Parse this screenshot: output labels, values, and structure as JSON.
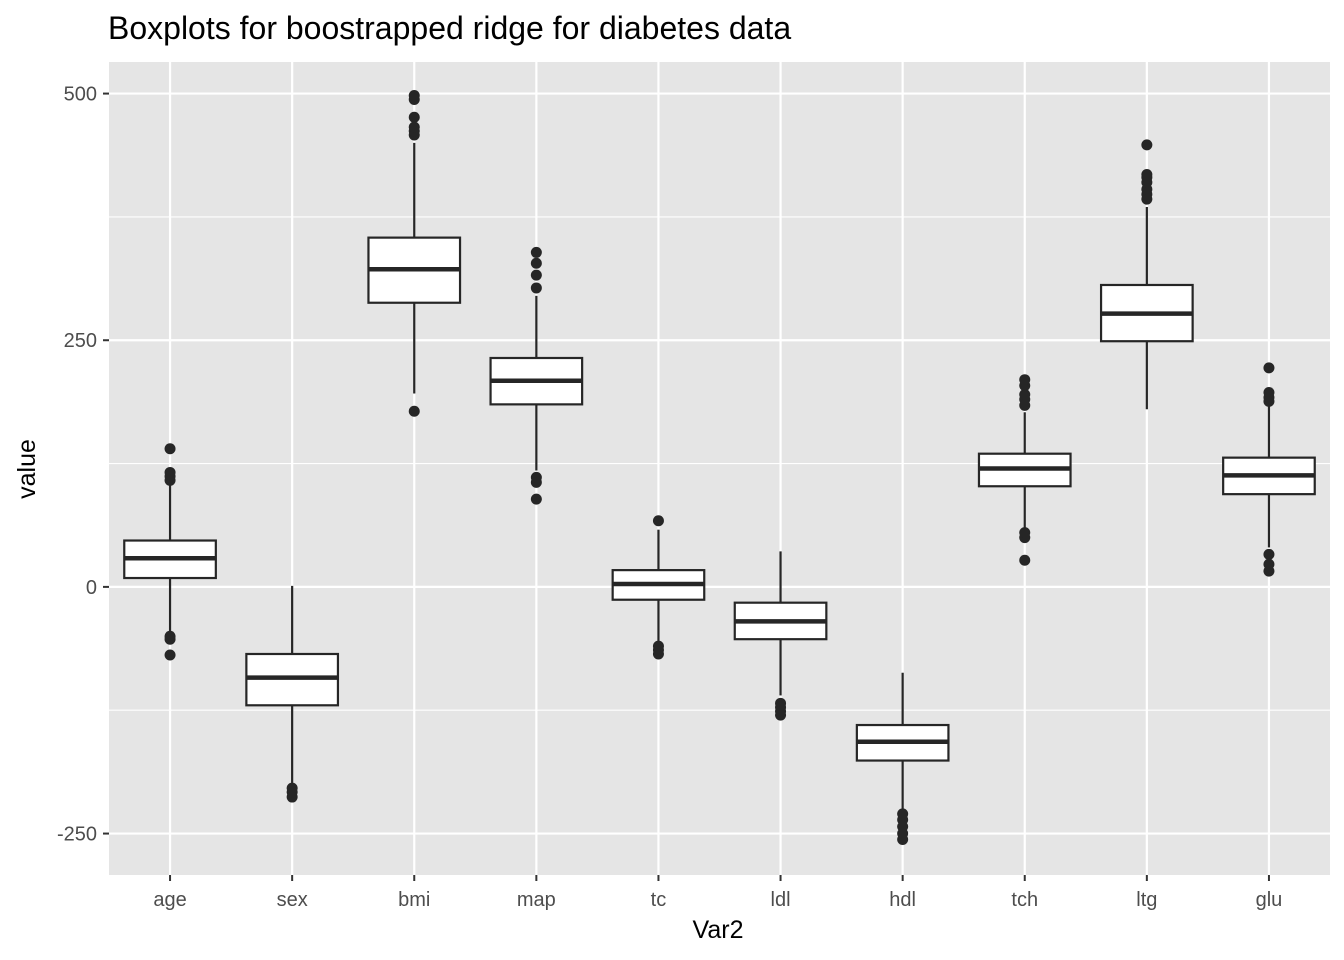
{
  "chart_data": {
    "type": "boxplot",
    "title": "Boxplots for boostrapped ridge for diabetes data",
    "xlabel": "Var2",
    "ylabel": "value",
    "ylim": [
      -292,
      532
    ],
    "yticks": [
      -250,
      0,
      250,
      500
    ],
    "ytick_labels": [
      "-250",
      "0",
      "250",
      "500"
    ],
    "grid": true,
    "legend": "none",
    "categories": [
      "age",
      "sex",
      "bmi",
      "map",
      "tc",
      "ldl",
      "hdl",
      "tch",
      "ltg",
      "glu"
    ],
    "boxes": [
      {
        "name": "age",
        "whisker_low": -48,
        "q1": 9,
        "median": 29,
        "q3": 47,
        "whisker_high": 103,
        "outliers": [
          -50,
          -53,
          -69,
          108,
          112,
          116,
          140
        ]
      },
      {
        "name": "sex",
        "whisker_low": -200,
        "q1": -120,
        "median": -92,
        "q3": -68,
        "whisker_high": 1,
        "outliers": [
          -204,
          -208,
          -213
        ]
      },
      {
        "name": "bmi",
        "whisker_low": 196,
        "q1": 288,
        "median": 322,
        "q3": 354,
        "whisker_high": 450,
        "outliers": [
          178,
          458,
          462,
          466,
          476,
          494,
          498
        ]
      },
      {
        "name": "map",
        "whisker_low": 118,
        "q1": 185,
        "median": 209,
        "q3": 232,
        "whisker_high": 295,
        "outliers": [
          89,
          106,
          111,
          303,
          316,
          328,
          339
        ]
      },
      {
        "name": "tc",
        "whisker_low": -55,
        "q1": -13,
        "median": 3,
        "q3": 17,
        "whisker_high": 58,
        "outliers": [
          -60,
          -64,
          -68,
          67
        ]
      },
      {
        "name": "ldl",
        "whisker_low": -110,
        "q1": -53,
        "median": -35,
        "q3": -16,
        "whisker_high": 36,
        "outliers": [
          -118,
          -122,
          -126,
          -130
        ]
      },
      {
        "name": "hdl",
        "whisker_low": -226,
        "q1": -176,
        "median": -157,
        "q3": -140,
        "whisker_high": -87,
        "outliers": [
          -230,
          -236,
          -243,
          -250,
          -256
        ]
      },
      {
        "name": "tch",
        "whisker_low": 60,
        "q1": 102,
        "median": 120,
        "q3": 135,
        "whisker_high": 177,
        "outliers": [
          27,
          50,
          55,
          184,
          190,
          195,
          204,
          210
        ]
      },
      {
        "name": "ltg",
        "whisker_low": 180,
        "q1": 249,
        "median": 277,
        "q3": 306,
        "whisker_high": 385,
        "outliers": [
          393,
          398,
          403,
          410,
          415,
          418,
          448
        ]
      },
      {
        "name": "glu",
        "whisker_low": 40,
        "q1": 94,
        "median": 113,
        "q3": 131,
        "whisker_high": 184,
        "outliers": [
          16,
          23,
          33,
          188,
          192,
          197,
          222
        ]
      }
    ],
    "colors": {
      "panel_background": "#e5e5e5",
      "grid_major": "#ffffff",
      "box_fill": "#ffffff",
      "box_stroke": "#262626",
      "outlier": "#262626"
    }
  }
}
